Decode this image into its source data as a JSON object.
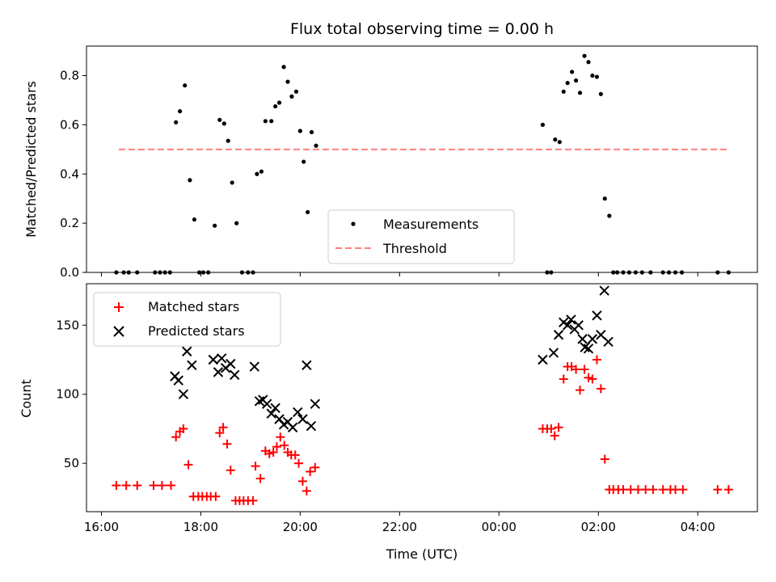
{
  "chart_data": [
    {
      "type": "scatter",
      "title": "Flux total observing time = 0.00 h",
      "ylabel": "Matched/Predicted stars",
      "xlim_hours": [
        15.7,
        29.2
      ],
      "ylim": [
        0,
        0.92
      ],
      "yticks": [
        "0.0",
        "0.2",
        "0.4",
        "0.6",
        "0.8"
      ],
      "legend_position": "lower-center",
      "series": [
        {
          "name": "Measurements",
          "color": "#000000",
          "marker": "dot",
          "points": [
            [
              16.3,
              0
            ],
            [
              16.45,
              0
            ],
            [
              16.55,
              0
            ],
            [
              16.72,
              0
            ],
            [
              17.08,
              0
            ],
            [
              17.18,
              0
            ],
            [
              17.28,
              0
            ],
            [
              17.38,
              0
            ],
            [
              17.5,
              0.61
            ],
            [
              17.58,
              0.655
            ],
            [
              17.68,
              0.76
            ],
            [
              17.78,
              0.375
            ],
            [
              17.87,
              0.215
            ],
            [
              17.97,
              0
            ],
            [
              18.05,
              0
            ],
            [
              18.15,
              0
            ],
            [
              18.28,
              0.19
            ],
            [
              18.38,
              0.62
            ],
            [
              18.47,
              0.605
            ],
            [
              18.55,
              0.535
            ],
            [
              18.63,
              0.365
            ],
            [
              18.72,
              0.2
            ],
            [
              18.83,
              0
            ],
            [
              18.95,
              0
            ],
            [
              19.05,
              0
            ],
            [
              19.13,
              0.4
            ],
            [
              19.22,
              0.41
            ],
            [
              19.3,
              0.615
            ],
            [
              19.42,
              0.615
            ],
            [
              19.5,
              0.675
            ],
            [
              19.58,
              0.69
            ],
            [
              19.67,
              0.835
            ],
            [
              19.75,
              0.775
            ],
            [
              19.83,
              0.715
            ],
            [
              19.92,
              0.735
            ],
            [
              20.0,
              0.575
            ],
            [
              20.07,
              0.45
            ],
            [
              20.15,
              0.245
            ],
            [
              20.23,
              0.57
            ],
            [
              20.32,
              0.515
            ],
            [
              24.88,
              0.6
            ],
            [
              24.97,
              0
            ],
            [
              25.05,
              0
            ],
            [
              25.13,
              0.54
            ],
            [
              25.22,
              0.53
            ],
            [
              25.3,
              0.735
            ],
            [
              25.38,
              0.77
            ],
            [
              25.47,
              0.815
            ],
            [
              25.55,
              0.78
            ],
            [
              25.63,
              0.73
            ],
            [
              25.72,
              0.88
            ],
            [
              25.8,
              0.855
            ],
            [
              25.88,
              0.8
            ],
            [
              25.97,
              0.795
            ],
            [
              26.05,
              0.725
            ],
            [
              26.13,
              0.3
            ],
            [
              26.22,
              0.23
            ],
            [
              26.3,
              0
            ],
            [
              26.38,
              0
            ],
            [
              26.5,
              0
            ],
            [
              26.62,
              0
            ],
            [
              26.75,
              0
            ],
            [
              26.88,
              0
            ],
            [
              27.05,
              0
            ],
            [
              27.3,
              0
            ],
            [
              27.42,
              0
            ],
            [
              27.55,
              0
            ],
            [
              27.68,
              0
            ],
            [
              28.4,
              0
            ],
            [
              28.62,
              0
            ]
          ]
        },
        {
          "name": "Threshold",
          "color": "#ff7f7f",
          "marker": "dashed-line",
          "points": [
            [
              16.35,
              0.5
            ],
            [
              28.6,
              0.5
            ]
          ]
        }
      ]
    },
    {
      "type": "scatter",
      "xlabel": "Time (UTC)",
      "ylabel": "Count",
      "xlim_hours": [
        15.7,
        29.2
      ],
      "ylim": [
        15,
        180
      ],
      "yticks": [
        "50",
        "100",
        "150"
      ],
      "xticks": [
        "16:00",
        "18:00",
        "20:00",
        "22:00",
        "00:00",
        "02:00",
        "04:00"
      ],
      "legend_position": "upper-left",
      "series": [
        {
          "name": "Matched stars",
          "color": "#ff0000",
          "marker": "plus",
          "points": [
            [
              16.3,
              34
            ],
            [
              16.5,
              34
            ],
            [
              16.72,
              34
            ],
            [
              17.05,
              34
            ],
            [
              17.22,
              34
            ],
            [
              17.4,
              34
            ],
            [
              17.5,
              69
            ],
            [
              17.58,
              73
            ],
            [
              17.65,
              75
            ],
            [
              17.75,
              49
            ],
            [
              17.85,
              26
            ],
            [
              17.95,
              26
            ],
            [
              18.03,
              26
            ],
            [
              18.12,
              26
            ],
            [
              18.2,
              26
            ],
            [
              18.3,
              26
            ],
            [
              18.38,
              72
            ],
            [
              18.45,
              76
            ],
            [
              18.53,
              64
            ],
            [
              18.6,
              45
            ],
            [
              18.7,
              23
            ],
            [
              18.78,
              23
            ],
            [
              18.86,
              23
            ],
            [
              18.95,
              23
            ],
            [
              19.05,
              23
            ],
            [
              19.1,
              48
            ],
            [
              19.2,
              39
            ],
            [
              19.3,
              59
            ],
            [
              19.38,
              57
            ],
            [
              19.46,
              58
            ],
            [
              19.53,
              62
            ],
            [
              19.6,
              69
            ],
            [
              19.68,
              63
            ],
            [
              19.75,
              58
            ],
            [
              19.82,
              56
            ],
            [
              19.9,
              56
            ],
            [
              19.97,
              50
            ],
            [
              20.05,
              37
            ],
            [
              20.13,
              30
            ],
            [
              20.2,
              44
            ],
            [
              20.3,
              47
            ],
            [
              24.88,
              75
            ],
            [
              24.97,
              75
            ],
            [
              25.05,
              75
            ],
            [
              25.12,
              70
            ],
            [
              25.2,
              76
            ],
            [
              25.3,
              111
            ],
            [
              25.38,
              120
            ],
            [
              25.46,
              120
            ],
            [
              25.55,
              118
            ],
            [
              25.63,
              103
            ],
            [
              25.72,
              118
            ],
            [
              25.8,
              112
            ],
            [
              25.88,
              111
            ],
            [
              25.97,
              125
            ],
            [
              26.05,
              104
            ],
            [
              26.13,
              53
            ],
            [
              26.22,
              31
            ],
            [
              26.3,
              31
            ],
            [
              26.4,
              31
            ],
            [
              26.5,
              31
            ],
            [
              26.65,
              31
            ],
            [
              26.8,
              31
            ],
            [
              26.95,
              31
            ],
            [
              27.1,
              31
            ],
            [
              27.3,
              31
            ],
            [
              27.45,
              31
            ],
            [
              27.55,
              31
            ],
            [
              27.7,
              31
            ],
            [
              28.4,
              31
            ],
            [
              28.62,
              31
            ]
          ]
        },
        {
          "name": "Predicted stars",
          "color": "#000000",
          "marker": "x",
          "points": [
            [
              17.48,
              113
            ],
            [
              17.55,
              110
            ],
            [
              17.65,
              100
            ],
            [
              17.72,
              131
            ],
            [
              17.82,
              121
            ],
            [
              18.25,
              125
            ],
            [
              18.35,
              116
            ],
            [
              18.42,
              126
            ],
            [
              18.5,
              119
            ],
            [
              18.6,
              122
            ],
            [
              18.68,
              114
            ],
            [
              19.08,
              120
            ],
            [
              19.18,
              95
            ],
            [
              19.25,
              96
            ],
            [
              19.33,
              93
            ],
            [
              19.42,
              86
            ],
            [
              19.5,
              90
            ],
            [
              19.58,
              82
            ],
            [
              19.67,
              78
            ],
            [
              19.75,
              80
            ],
            [
              19.85,
              76
            ],
            [
              19.95,
              87
            ],
            [
              20.05,
              82
            ],
            [
              20.13,
              121
            ],
            [
              20.22,
              77
            ],
            [
              20.3,
              93
            ],
            [
              24.88,
              125
            ],
            [
              25.1,
              130
            ],
            [
              25.2,
              143
            ],
            [
              25.3,
              152
            ],
            [
              25.38,
              150
            ],
            [
              25.45,
              154
            ],
            [
              25.52,
              147
            ],
            [
              25.6,
              150
            ],
            [
              25.68,
              140
            ],
            [
              25.73,
              134
            ],
            [
              25.8,
              133
            ],
            [
              25.88,
              140
            ],
            [
              25.97,
              157
            ],
            [
              26.05,
              143
            ],
            [
              26.12,
              175
            ],
            [
              26.2,
              138
            ]
          ]
        }
      ]
    }
  ]
}
